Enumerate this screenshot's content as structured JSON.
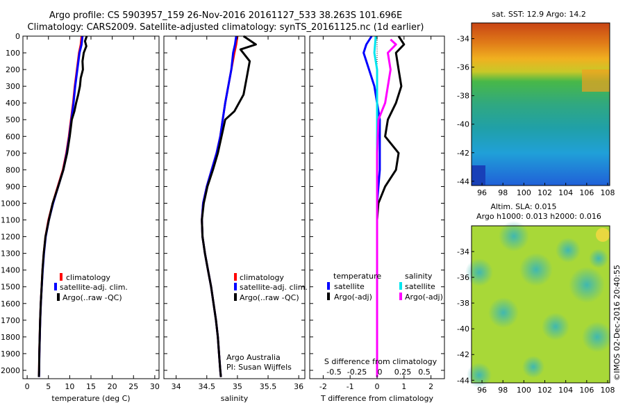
{
  "header": {
    "line1": "Argo profile: CS 5903957_159 26-Nov-2016 20161127_533 38.263S 101.696E",
    "line2": "Climatology: CARS2009. Satellite-adjusted climatology: synTS_20161125.nc (1d earlier)"
  },
  "legend": {
    "climatology": "climatology",
    "satellite": "satellite-adj. clim.",
    "argo": "Argo(..raw -QC)"
  },
  "diff_legend": {
    "temperature": "temperature",
    "salinity": "salinity",
    "satellite": "satellite",
    "argo": "Argo(-adj)",
    "s_axis_label": "S difference from climatology",
    "s_ticks": [
      "-0.5",
      "-0.25",
      "0",
      "0.25",
      "0.5"
    ]
  },
  "credits": {
    "org": "Argo Australia",
    "pi": "PI: Susan Wijffels",
    "stamp": "©IMOS 02-Dec-2016 20:40:55"
  },
  "maps": {
    "sst_title": "sat. SST: 12.9 Argo: 14.2",
    "sla_title1": "Altim. SLA: 0.015",
    "sla_title2": "Argo h1000: 0.013 h2000: 0.016",
    "x_ticks": [
      "96",
      "98",
      "100",
      "102",
      "104",
      "106",
      "108"
    ],
    "y_ticks": [
      "-34",
      "-36",
      "-38",
      "-40",
      "-42",
      "-44"
    ]
  },
  "colors": {
    "climatology": "#ff0000",
    "satellite": "#0000ff",
    "argo": "#000000",
    "sat_salinity": "#00e5ee",
    "argo_salinity": "#ff00ff"
  },
  "chart_data": [
    {
      "type": "line",
      "panel": "temperature",
      "xlabel": "temperature (deg C)",
      "ylabel": "",
      "xlim": [
        -1,
        31
      ],
      "ylim": [
        2050,
        0
      ],
      "x_ticks": [
        0,
        5,
        10,
        15,
        20,
        25,
        30
      ],
      "y_ticks": [
        0,
        100,
        200,
        300,
        400,
        500,
        600,
        700,
        800,
        900,
        1000,
        1100,
        1200,
        1300,
        1400,
        1500,
        1600,
        1700,
        1800,
        1900,
        2000
      ],
      "series": [
        {
          "name": "climatology",
          "color": "#ff0000",
          "points": [
            [
              12.8,
              0
            ],
            [
              12.6,
              50
            ],
            [
              12.2,
              100
            ],
            [
              11.7,
              200
            ],
            [
              11.2,
              300
            ],
            [
              10.8,
              400
            ],
            [
              10.3,
              500
            ],
            [
              9.8,
              600
            ],
            [
              9.2,
              700
            ],
            [
              8.4,
              800
            ],
            [
              7.2,
              900
            ],
            [
              6.0,
              1000
            ],
            [
              5.0,
              1100
            ],
            [
              4.3,
              1200
            ],
            [
              3.9,
              1300
            ],
            [
              3.6,
              1400
            ],
            [
              3.4,
              1500
            ],
            [
              3.2,
              1600
            ],
            [
              3.05,
              1700
            ],
            [
              2.95,
              1800
            ],
            [
              2.85,
              1900
            ],
            [
              2.8,
              2000
            ],
            [
              2.75,
              2040
            ]
          ]
        },
        {
          "name": "satellite-adj. clim.",
          "color": "#0000ff",
          "points": [
            [
              13.0,
              0
            ],
            [
              12.8,
              50
            ],
            [
              12.3,
              100
            ],
            [
              11.8,
              200
            ],
            [
              11.3,
              300
            ],
            [
              10.9,
              400
            ],
            [
              10.4,
              500
            ],
            [
              9.9,
              600
            ],
            [
              9.3,
              700
            ],
            [
              8.5,
              800
            ],
            [
              7.3,
              900
            ],
            [
              6.1,
              1000
            ],
            [
              5.1,
              1100
            ],
            [
              4.35,
              1200
            ],
            [
              3.95,
              1300
            ],
            [
              3.65,
              1400
            ],
            [
              3.42,
              1500
            ],
            [
              3.22,
              1600
            ],
            [
              3.07,
              1700
            ],
            [
              2.97,
              1800
            ],
            [
              2.87,
              1900
            ],
            [
              2.82,
              2000
            ],
            [
              2.78,
              2040
            ]
          ]
        },
        {
          "name": "Argo(..raw -QC)",
          "color": "#000000",
          "points": [
            [
              14.0,
              0
            ],
            [
              13.6,
              30
            ],
            [
              13.9,
              60
            ],
            [
              13.3,
              100
            ],
            [
              13.0,
              150
            ],
            [
              13.1,
              200
            ],
            [
              12.6,
              250
            ],
            [
              12.4,
              300
            ],
            [
              12.0,
              350
            ],
            [
              11.5,
              400
            ],
            [
              11.1,
              450
            ],
            [
              10.5,
              500
            ],
            [
              10.0,
              600
            ],
            [
              9.4,
              700
            ],
            [
              8.5,
              800
            ],
            [
              7.3,
              900
            ],
            [
              6.0,
              1000
            ],
            [
              5.1,
              1100
            ],
            [
              4.3,
              1200
            ],
            [
              3.9,
              1300
            ],
            [
              3.6,
              1400
            ],
            [
              3.4,
              1500
            ],
            [
              3.2,
              1600
            ],
            [
              3.05,
              1700
            ],
            [
              2.95,
              1800
            ],
            [
              2.85,
              1900
            ],
            [
              2.8,
              2000
            ],
            [
              2.75,
              2040
            ]
          ]
        }
      ]
    },
    {
      "type": "line",
      "panel": "salinity",
      "xlabel": "salinity",
      "ylabel": "",
      "xlim": [
        33.8,
        36.1
      ],
      "ylim": [
        2050,
        0
      ],
      "x_ticks": [
        34,
        34.5,
        35,
        35.5,
        36
      ],
      "y_ticks": [
        0,
        100,
        200,
        300,
        400,
        500,
        600,
        700,
        800,
        900,
        1000,
        1100,
        1200,
        1300,
        1400,
        1500,
        1600,
        1700,
        1800,
        1900,
        2000
      ],
      "series": [
        {
          "name": "climatology",
          "color": "#ff0000",
          "points": [
            [
              35.0,
              0
            ],
            [
              34.98,
              50
            ],
            [
              34.95,
              100
            ],
            [
              34.9,
              200
            ],
            [
              34.85,
              300
            ],
            [
              34.8,
              400
            ],
            [
              34.76,
              500
            ],
            [
              34.72,
              600
            ],
            [
              34.66,
              700
            ],
            [
              34.58,
              800
            ],
            [
              34.5,
              900
            ],
            [
              34.44,
              1000
            ],
            [
              34.42,
              1100
            ],
            [
              34.43,
              1200
            ],
            [
              34.47,
              1300
            ],
            [
              34.52,
              1400
            ],
            [
              34.57,
              1500
            ],
            [
              34.61,
              1600
            ],
            [
              34.65,
              1700
            ],
            [
              34.68,
              1800
            ],
            [
              34.7,
              1900
            ],
            [
              34.72,
              2000
            ],
            [
              34.73,
              2040
            ]
          ]
        },
        {
          "name": "satellite-adj. clim.",
          "color": "#0000ff",
          "points": [
            [
              34.98,
              0
            ],
            [
              34.96,
              50
            ],
            [
              34.93,
              100
            ],
            [
              34.9,
              200
            ],
            [
              34.85,
              300
            ],
            [
              34.8,
              400
            ],
            [
              34.76,
              500
            ],
            [
              34.72,
              600
            ],
            [
              34.66,
              700
            ],
            [
              34.58,
              800
            ],
            [
              34.5,
              900
            ],
            [
              34.44,
              1000
            ],
            [
              34.42,
              1100
            ],
            [
              34.43,
              1200
            ],
            [
              34.47,
              1300
            ],
            [
              34.52,
              1400
            ],
            [
              34.57,
              1500
            ],
            [
              34.61,
              1600
            ],
            [
              34.65,
              1700
            ],
            [
              34.68,
              1800
            ],
            [
              34.7,
              1900
            ],
            [
              34.72,
              2000
            ],
            [
              34.73,
              2040
            ]
          ]
        },
        {
          "name": "Argo(..raw -QC)",
          "color": "#000000",
          "points": [
            [
              35.1,
              0
            ],
            [
              35.3,
              50
            ],
            [
              35.05,
              80
            ],
            [
              35.2,
              150
            ],
            [
              35.15,
              250
            ],
            [
              35.1,
              350
            ],
            [
              34.95,
              450
            ],
            [
              34.8,
              500
            ],
            [
              34.74,
              600
            ],
            [
              34.68,
              700
            ],
            [
              34.6,
              800
            ],
            [
              34.51,
              900
            ],
            [
              34.45,
              1000
            ],
            [
              34.42,
              1100
            ],
            [
              34.43,
              1200
            ],
            [
              34.47,
              1300
            ],
            [
              34.52,
              1400
            ],
            [
              34.57,
              1500
            ],
            [
              34.61,
              1600
            ],
            [
              34.65,
              1700
            ],
            [
              34.68,
              1800
            ],
            [
              34.7,
              1900
            ],
            [
              34.72,
              2000
            ],
            [
              34.73,
              2040
            ]
          ]
        }
      ]
    },
    {
      "type": "line",
      "panel": "difference",
      "xlabel": "T difference from climatology",
      "ylabel": "",
      "xlim": [
        -2.5,
        2.5
      ],
      "ylim": [
        2050,
        0
      ],
      "x_ticks": [
        -2,
        -1,
        0,
        1,
        2
      ],
      "y_ticks": [
        0,
        100,
        200,
        300,
        400,
        500,
        600,
        700,
        800,
        900,
        1000,
        1100,
        1200,
        1300,
        1400,
        1500,
        1600,
        1700,
        1800,
        1900,
        2000
      ],
      "series": [
        {
          "name": "satellite (temperature)",
          "color": "#0000ff",
          "points": [
            [
              -0.2,
              0
            ],
            [
              -0.4,
              50
            ],
            [
              -0.5,
              100
            ],
            [
              -0.3,
              200
            ],
            [
              -0.1,
              300
            ],
            [
              0.0,
              400
            ],
            [
              0.1,
              500
            ],
            [
              0.1,
              600
            ],
            [
              0.1,
              700
            ],
            [
              0.1,
              800
            ],
            [
              0.05,
              900
            ],
            [
              0.0,
              1000
            ],
            [
              0.0,
              1100
            ],
            [
              0.0,
              1200
            ],
            [
              0.0,
              1500
            ],
            [
              0.0,
              2040
            ]
          ]
        },
        {
          "name": "Argo(-adj) (temperature)",
          "color": "#000000",
          "points": [
            [
              0.8,
              0
            ],
            [
              1.0,
              50
            ],
            [
              0.7,
              100
            ],
            [
              0.8,
              200
            ],
            [
              0.9,
              300
            ],
            [
              0.7,
              400
            ],
            [
              0.4,
              500
            ],
            [
              0.3,
              600
            ],
            [
              0.8,
              700
            ],
            [
              0.7,
              800
            ],
            [
              0.3,
              900
            ],
            [
              0.05,
              1000
            ],
            [
              0.0,
              1100
            ],
            [
              0.0,
              1500
            ],
            [
              0.0,
              2040
            ]
          ]
        },
        {
          "name": "satellite (salinity)",
          "color": "#00e5ee",
          "points": [
            [
              -0.05,
              0
            ],
            [
              -0.1,
              100
            ],
            [
              0.0,
              200
            ],
            [
              0.0,
              400
            ],
            [
              0.0,
              1000
            ],
            [
              0.0,
              2040
            ]
          ]
        },
        {
          "name": "Argo(-adj) (salinity)",
          "color": "#ff00ff",
          "points": [
            [
              0.5,
              20
            ],
            [
              0.7,
              50
            ],
            [
              0.4,
              100
            ],
            [
              0.5,
              200
            ],
            [
              0.4,
              300
            ],
            [
              0.3,
              400
            ],
            [
              0.05,
              500
            ],
            [
              0.0,
              700
            ],
            [
              0.0,
              2040
            ]
          ]
        }
      ]
    }
  ]
}
